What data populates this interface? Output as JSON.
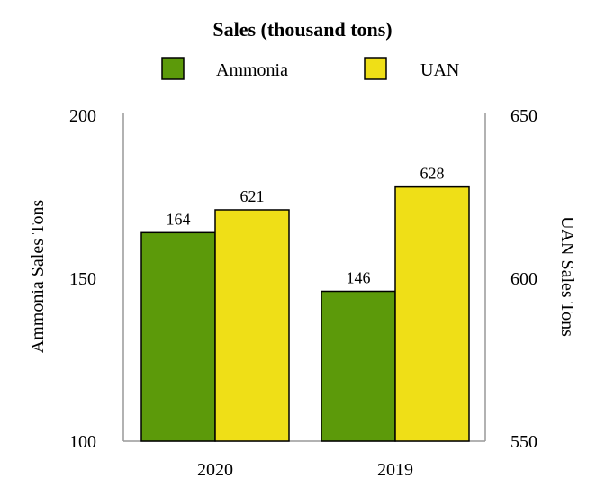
{
  "chart_data": {
    "type": "bar",
    "title": "Sales (thousand tons)",
    "categories": [
      "2020",
      "2019"
    ],
    "series": [
      {
        "name": "Ammonia",
        "axis": "left",
        "color": "#5c9a0a",
        "values": [
          164,
          146
        ]
      },
      {
        "name": "UAN",
        "axis": "right",
        "color": "#efdf17",
        "values": [
          621,
          628
        ]
      }
    ],
    "y_left": {
      "label": "Ammonia Sales Tons",
      "min": 100,
      "max": 200,
      "ticks": [
        100,
        150,
        200
      ]
    },
    "y_right": {
      "label": "UAN Sales Tons",
      "min": 550,
      "max": 650,
      "ticks": [
        550,
        600,
        650
      ]
    },
    "legend": {
      "placement": "top"
    },
    "grid": false
  }
}
